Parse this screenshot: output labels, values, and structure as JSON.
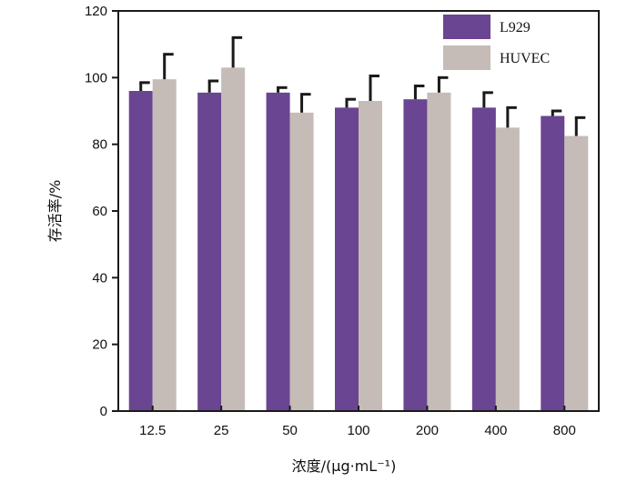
{
  "chart_data": {
    "type": "bar",
    "xlabel": "浓度/(μg·mL⁻¹)",
    "ylabel": "存活率/%",
    "ylim": [
      0,
      120
    ],
    "yticks": [
      0,
      20,
      40,
      60,
      80,
      100,
      120
    ],
    "categories": [
      "12.5",
      "25",
      "50",
      "100",
      "200",
      "400",
      "800"
    ],
    "series": [
      {
        "name": "L929",
        "color": "#6a4592",
        "values": [
          96,
          95.5,
          95.5,
          91,
          93.5,
          91,
          88.5
        ],
        "errors": [
          2.5,
          3.5,
          1.5,
          2.5,
          4,
          4.5,
          1.5
        ]
      },
      {
        "name": "HUVEC",
        "color": "#c5bcb8",
        "values": [
          99.5,
          103,
          89.5,
          93,
          95.5,
          85,
          82.5
        ],
        "errors": [
          7.5,
          9,
          5.5,
          7.5,
          4.5,
          6,
          5.5
        ]
      }
    ],
    "legend_position": "top-right",
    "grid": false
  }
}
